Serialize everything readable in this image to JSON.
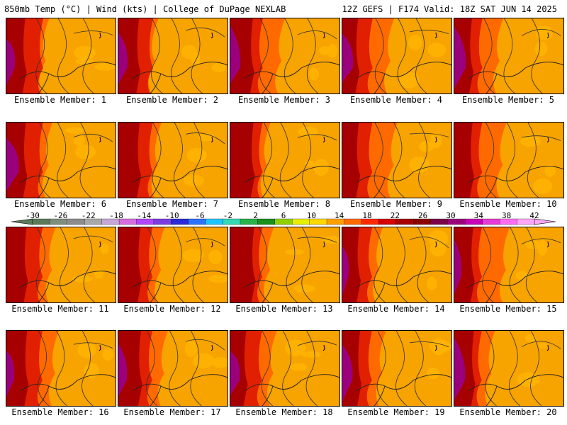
{
  "header": {
    "left": "850mb Temp (°C) | Wind (kts) | College of DuPage NEXLAB",
    "right": "12Z GEFS | F174 Valid: 18Z SAT JUN 14 2025"
  },
  "colors": {
    "cold": "#8b0000",
    "hot_purple": "#9a1b86",
    "warm_orange": "#f7a300",
    "red_orange": "#e84a00"
  },
  "chart_data": {
    "type": "heatmap",
    "title": "850mb Temp (°C) | Wind (kts)",
    "colorbar": {
      "tick_labels": [
        "-30",
        "-26",
        "-22",
        "-18",
        "-14",
        "-10",
        "-6",
        "-2",
        "2",
        "6",
        "10",
        "14",
        "18",
        "22",
        "26",
        "30",
        "34",
        "38",
        "42"
      ],
      "colors": [
        "#5a7a5a",
        "#7f8f7f",
        "#8c8c8c",
        "#a9a9a9",
        "#c7a6d8",
        "#d66ce0",
        "#b146ff",
        "#7a3de0",
        "#2a2ad8",
        "#2b72ff",
        "#1ec5ff",
        "#34d9b4",
        "#27b34a",
        "#1a8f1a",
        "#90d000",
        "#e8ee00",
        "#ffd800",
        "#ffa000",
        "#ff6a00",
        "#ff2a00",
        "#d40000",
        "#a60000",
        "#8b0000",
        "#7a004a",
        "#9b007c",
        "#c700b7",
        "#e63bd6",
        "#ff6cf0",
        "#ffa6f7"
      ],
      "range": [
        -30,
        42
      ],
      "units": "°C"
    },
    "panels": [
      {
        "label": "Ensemble Member: 1"
      },
      {
        "label": "Ensemble Member: 2"
      },
      {
        "label": "Ensemble Member: 3"
      },
      {
        "label": "Ensemble Member: 4"
      },
      {
        "label": "Ensemble Member: 5"
      },
      {
        "label": "Ensemble Member: 6"
      },
      {
        "label": "Ensemble Member: 7"
      },
      {
        "label": "Ensemble Member: 8"
      },
      {
        "label": "Ensemble Member: 9"
      },
      {
        "label": "Ensemble Member: 10"
      },
      {
        "label": "Ensemble Member: 11"
      },
      {
        "label": "Ensemble Member: 12"
      },
      {
        "label": "Ensemble Member: 13"
      },
      {
        "label": "Ensemble Member: 14"
      },
      {
        "label": "Ensemble Member: 15"
      },
      {
        "label": "Ensemble Member: 16"
      },
      {
        "label": "Ensemble Member: 17"
      },
      {
        "label": "Ensemble Member: 18"
      },
      {
        "label": "Ensemble Member: 19"
      },
      {
        "label": "Ensemble Member: 20"
      }
    ]
  }
}
